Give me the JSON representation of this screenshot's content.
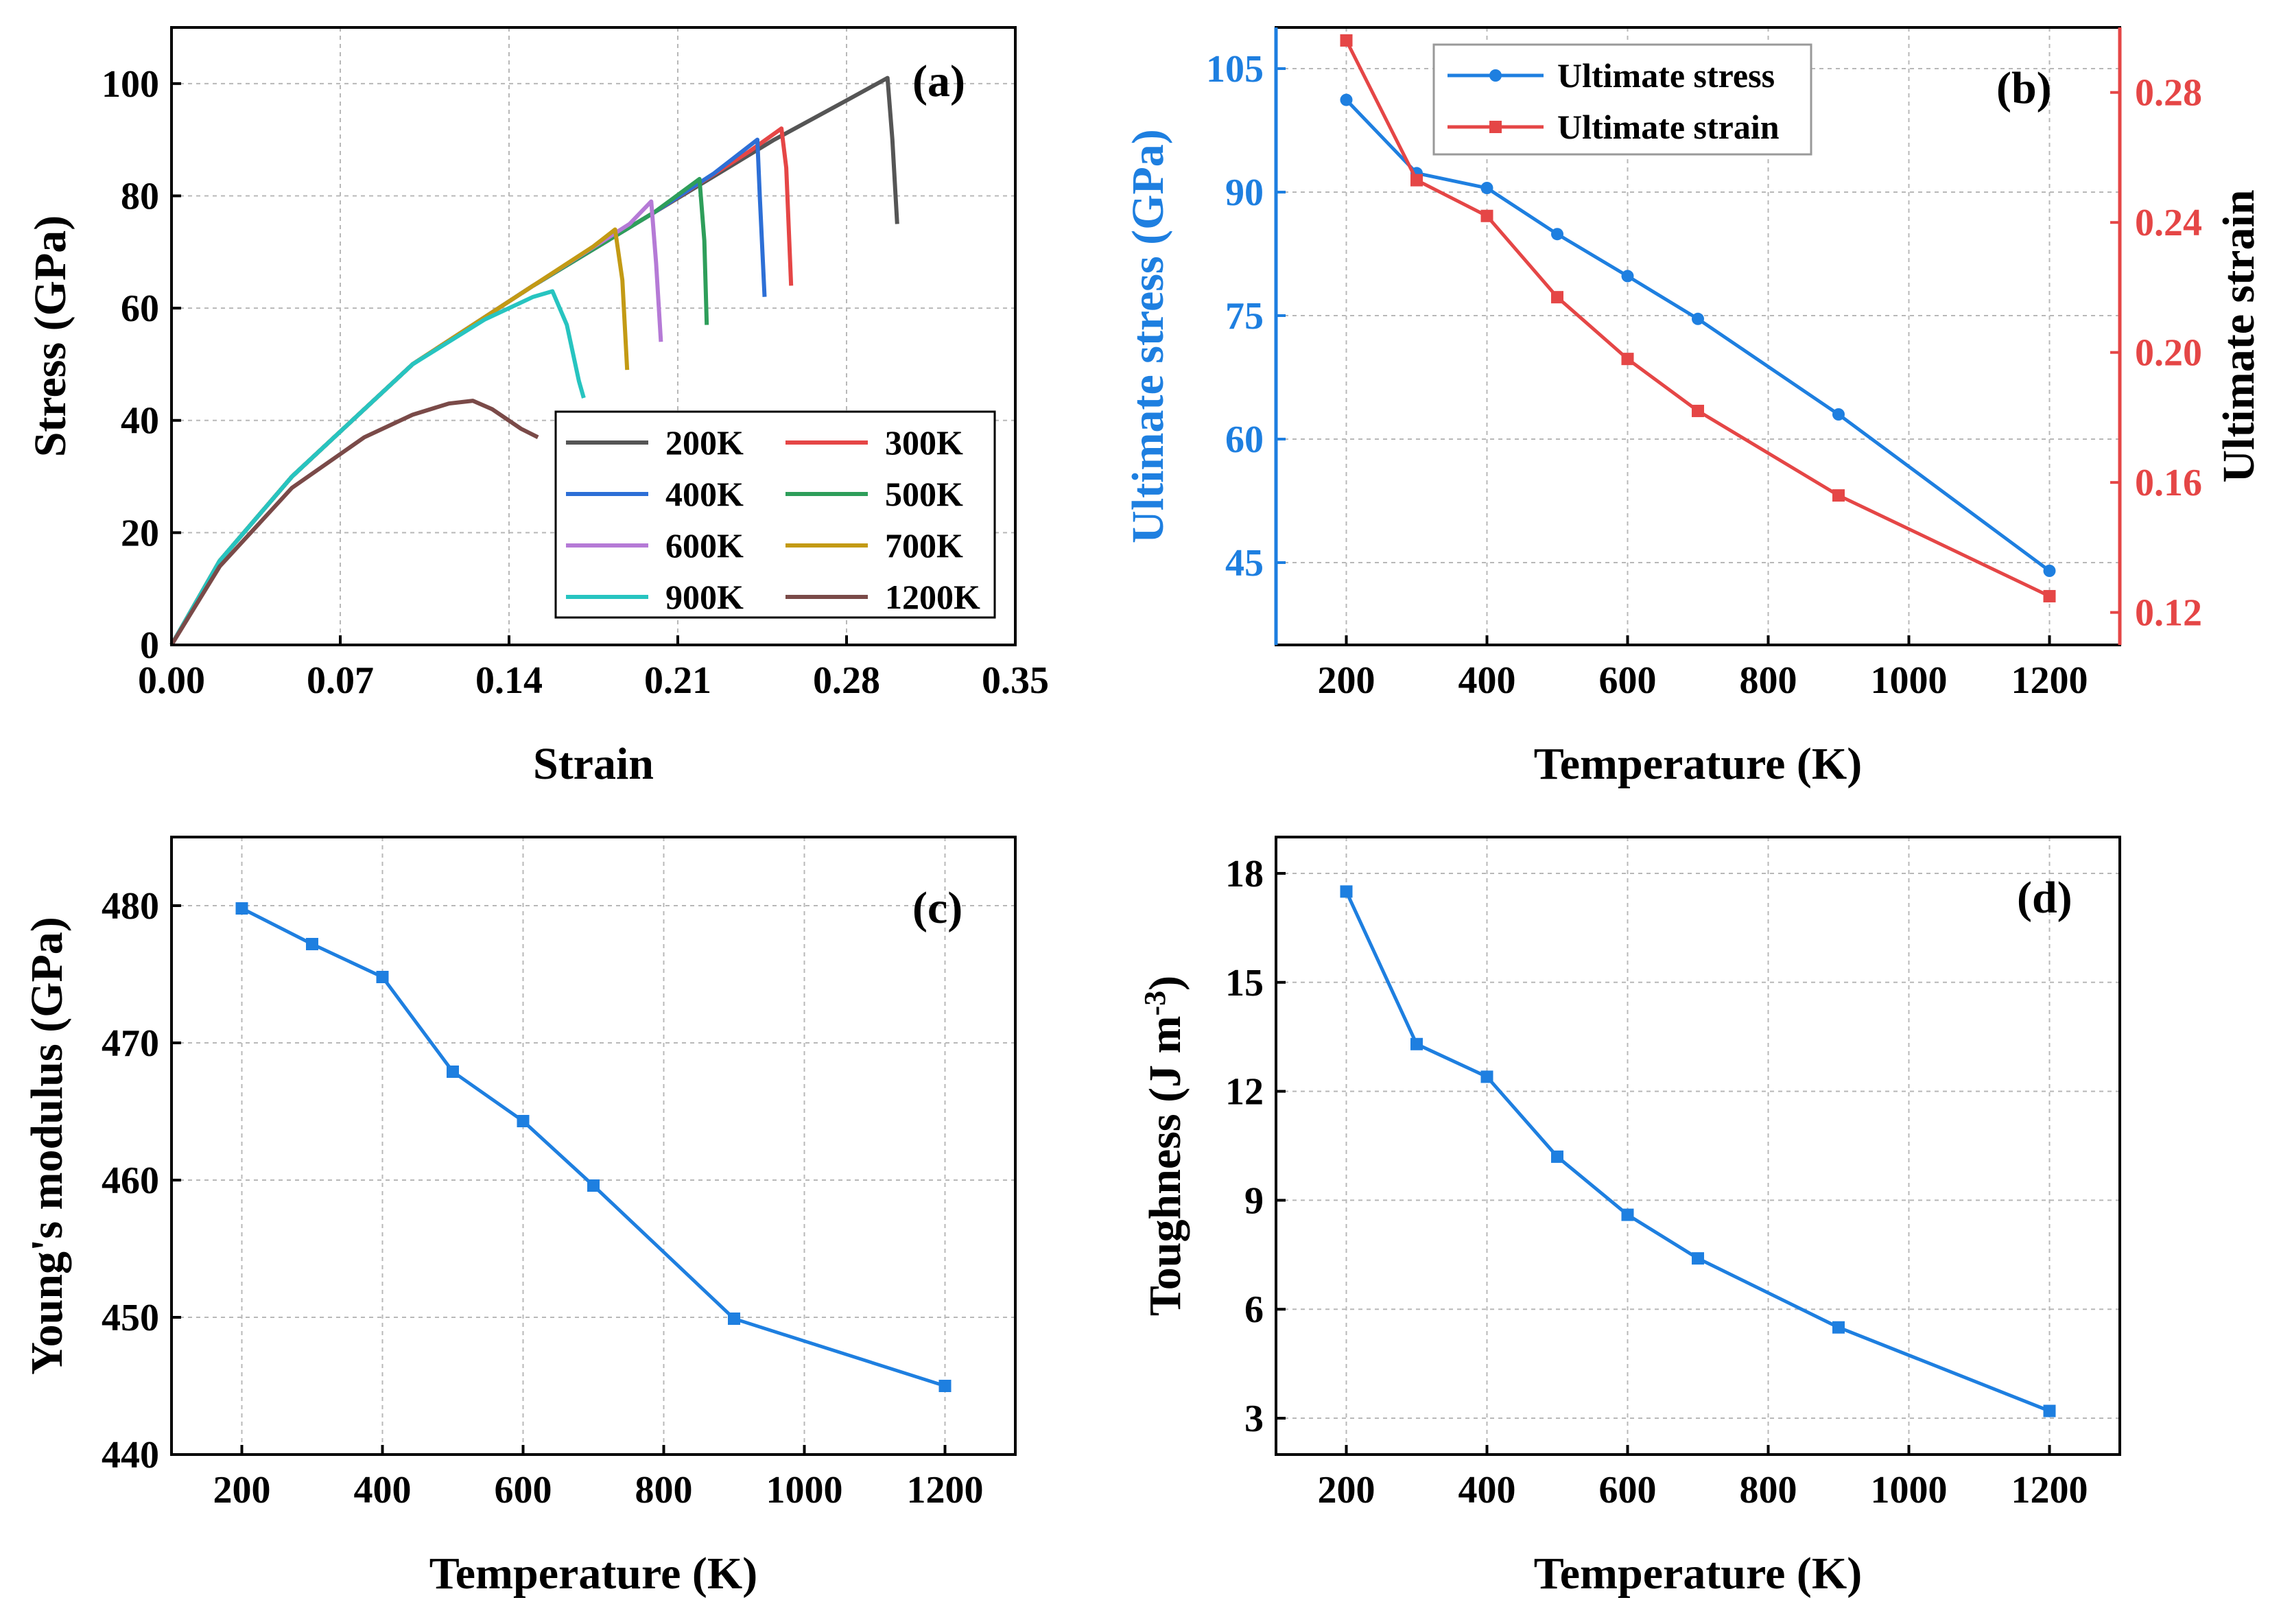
{
  "chart_data": [
    {
      "id": "a",
      "type": "line",
      "panel_label": "(a)",
      "xlabel": "Strain",
      "ylabel": "Stress (GPa)",
      "xlim": [
        0,
        0.35
      ],
      "ylim": [
        0,
        110
      ],
      "xticks": [
        "0.00",
        "0.07",
        "0.14",
        "0.21",
        "0.28",
        "0.35"
      ],
      "yticks": [
        "0",
        "20",
        "40",
        "60",
        "80",
        "100"
      ],
      "legend_position": "bottom-right",
      "series": [
        {
          "name": "200K",
          "color": "#555555",
          "x": [
            0,
            0.02,
            0.05,
            0.1,
            0.15,
            0.2,
            0.25,
            0.28,
            0.297,
            0.299,
            0.301
          ],
          "y": [
            0,
            15,
            30,
            50,
            64,
            77,
            90,
            97,
            101,
            90,
            75
          ]
        },
        {
          "name": "300K",
          "color": "#e54646",
          "x": [
            0,
            0.02,
            0.05,
            0.1,
            0.15,
            0.2,
            0.24,
            0.253,
            0.255,
            0.257
          ],
          "y": [
            0,
            15,
            30,
            50,
            64,
            77,
            88,
            92,
            85,
            64
          ]
        },
        {
          "name": "400K",
          "color": "#2d6fd6",
          "x": [
            0,
            0.02,
            0.05,
            0.1,
            0.15,
            0.2,
            0.225,
            0.243,
            0.244,
            0.246
          ],
          "y": [
            0,
            15,
            30,
            50,
            64,
            77,
            84,
            90,
            80,
            62
          ]
        },
        {
          "name": "500K",
          "color": "#2e9e5a",
          "x": [
            0,
            0.02,
            0.05,
            0.1,
            0.15,
            0.2,
            0.219,
            0.221,
            0.222
          ],
          "y": [
            0,
            15,
            30,
            50,
            64,
            77,
            83,
            72,
            57
          ]
        },
        {
          "name": "600K",
          "color": "#b57ad6",
          "x": [
            0,
            0.02,
            0.05,
            0.1,
            0.15,
            0.19,
            0.199,
            0.201,
            0.203
          ],
          "y": [
            0,
            15,
            30,
            50,
            64,
            75,
            79,
            68,
            54
          ]
        },
        {
          "name": "700K",
          "color": "#c39a14",
          "x": [
            0,
            0.02,
            0.05,
            0.1,
            0.15,
            0.175,
            0.184,
            0.187,
            0.189
          ],
          "y": [
            0,
            15,
            30,
            50,
            64,
            71,
            74,
            65,
            49
          ]
        },
        {
          "name": "900K",
          "color": "#27c4c0",
          "x": [
            0,
            0.02,
            0.05,
            0.1,
            0.13,
            0.15,
            0.158,
            0.164,
            0.169,
            0.171
          ],
          "y": [
            0,
            15,
            30,
            50,
            58,
            62,
            63,
            57,
            47,
            44
          ]
        },
        {
          "name": "1200K",
          "color": "#7a4a48",
          "x": [
            0,
            0.02,
            0.05,
            0.08,
            0.1,
            0.115,
            0.125,
            0.133,
            0.145,
            0.152
          ],
          "y": [
            0,
            14,
            28,
            37,
            41,
            43,
            43.5,
            42,
            38.5,
            37
          ]
        }
      ]
    },
    {
      "id": "b",
      "type": "line",
      "panel_label": "(b)",
      "xlabel": "Temperature (K)",
      "ylabel": "Ultimate stress (GPa)",
      "ylabel_right": "Ultimate strain",
      "xlim": [
        100,
        1300
      ],
      "ylim": [
        35,
        110
      ],
      "ylim_right": [
        0.11,
        0.3
      ],
      "xticks": [
        "200",
        "400",
        "600",
        "800",
        "1000",
        "1200"
      ],
      "yticks": [
        "45",
        "60",
        "75",
        "90",
        "105"
      ],
      "yticks_right": [
        "0.12",
        "0.16",
        "0.20",
        "0.24",
        "0.28"
      ],
      "legend_position": "top-left",
      "series": [
        {
          "name": "Ultimate stress",
          "color": "#1e7fe0",
          "axis": "left",
          "marker": "circle",
          "x": [
            200,
            300,
            400,
            500,
            600,
            700,
            900,
            1200
          ],
          "y": [
            101.2,
            92.3,
            90.5,
            84.9,
            79.8,
            74.6,
            63.0,
            44.0
          ]
        },
        {
          "name": "Ultimate strain",
          "color": "#e54646",
          "axis": "right",
          "marker": "square",
          "x": [
            200,
            300,
            400,
            500,
            600,
            700,
            900,
            1200
          ],
          "y": [
            0.296,
            0.253,
            0.242,
            0.217,
            0.198,
            0.182,
            0.156,
            0.125
          ]
        }
      ]
    },
    {
      "id": "c",
      "type": "line",
      "panel_label": "(c)",
      "xlabel": "Temperature (K)",
      "ylabel": "Young's modulus (GPa)",
      "xlim": [
        100,
        1300
      ],
      "ylim": [
        440,
        485
      ],
      "xticks": [
        "200",
        "400",
        "600",
        "800",
        "1000",
        "1200"
      ],
      "yticks": [
        "440",
        "450",
        "460",
        "470",
        "480"
      ],
      "series": [
        {
          "name": "Young's modulus",
          "color": "#1e7fe0",
          "marker": "square",
          "x": [
            200,
            300,
            400,
            500,
            600,
            700,
            900,
            1200
          ],
          "y": [
            479.8,
            477.2,
            474.8,
            467.9,
            464.3,
            459.6,
            449.9,
            445.0
          ]
        }
      ]
    },
    {
      "id": "d",
      "type": "line",
      "panel_label": "(d)",
      "xlabel": "Temperature (K)",
      "ylabel": "Toughness (J m",
      "ylabel_superscript": "-3",
      "ylabel_suffix": ")",
      "xlim": [
        100,
        1300
      ],
      "ylim": [
        2,
        19
      ],
      "xticks": [
        "200",
        "400",
        "600",
        "800",
        "1000",
        "1200"
      ],
      "yticks": [
        "3",
        "6",
        "9",
        "12",
        "15",
        "18"
      ],
      "series": [
        {
          "name": "Toughness",
          "color": "#1e7fe0",
          "marker": "square",
          "x": [
            200,
            300,
            400,
            500,
            600,
            700,
            900,
            1200
          ],
          "y": [
            17.5,
            13.3,
            12.4,
            10.2,
            8.6,
            7.4,
            5.5,
            3.2
          ]
        }
      ]
    }
  ]
}
